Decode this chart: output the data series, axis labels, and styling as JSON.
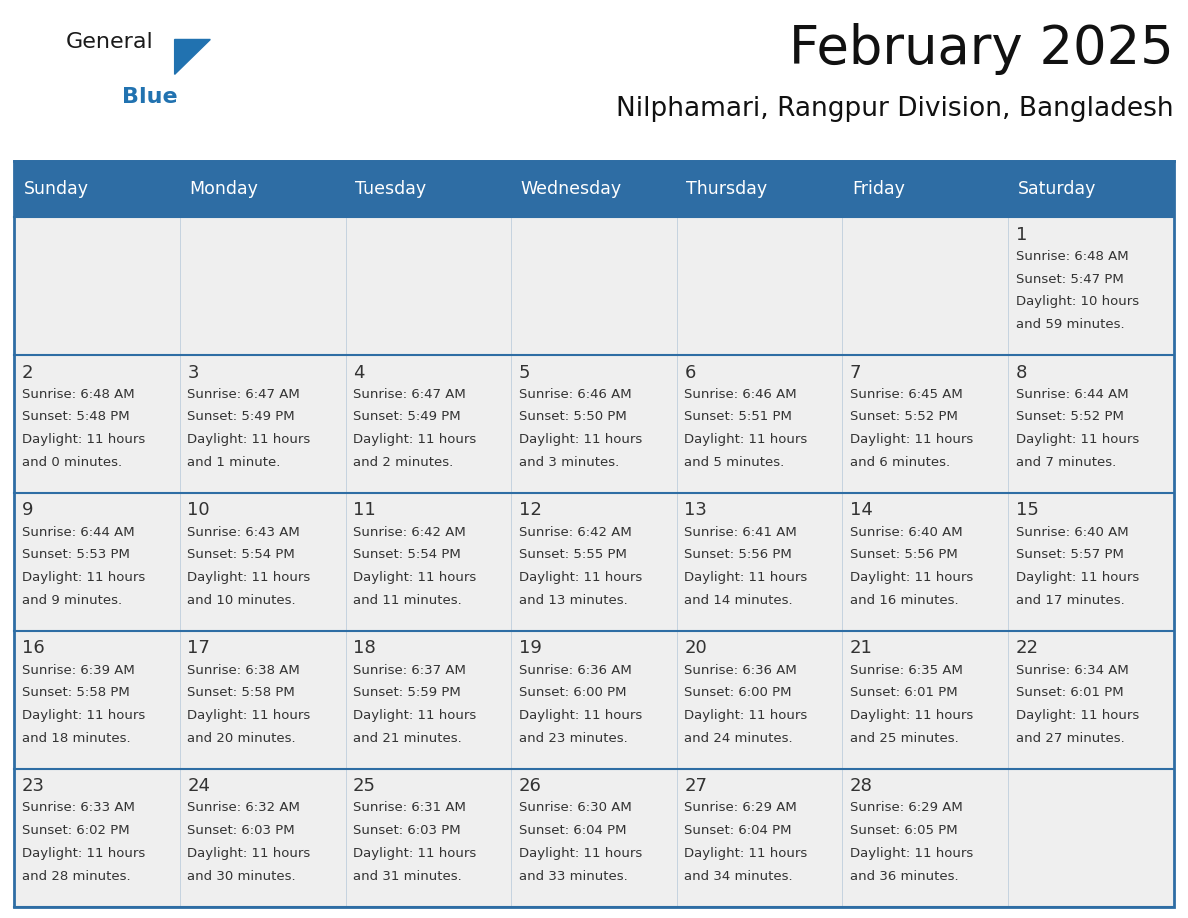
{
  "title": "February 2025",
  "subtitle": "Nilphamari, Rangpur Division, Bangladesh",
  "header_bg": "#2E6DA4",
  "header_text_color": "#FFFFFF",
  "cell_bg": "#EFEFEF",
  "grid_line_color": "#2E6DA4",
  "day_headers": [
    "Sunday",
    "Monday",
    "Tuesday",
    "Wednesday",
    "Thursday",
    "Friday",
    "Saturday"
  ],
  "days": [
    {
      "date": 1,
      "col": 6,
      "row": 0,
      "sunrise": "6:48 AM",
      "sunset": "5:47 PM",
      "daylight_line1": "Daylight: 10 hours",
      "daylight_line2": "and 59 minutes."
    },
    {
      "date": 2,
      "col": 0,
      "row": 1,
      "sunrise": "6:48 AM",
      "sunset": "5:48 PM",
      "daylight_line1": "Daylight: 11 hours",
      "daylight_line2": "and 0 minutes."
    },
    {
      "date": 3,
      "col": 1,
      "row": 1,
      "sunrise": "6:47 AM",
      "sunset": "5:49 PM",
      "daylight_line1": "Daylight: 11 hours",
      "daylight_line2": "and 1 minute."
    },
    {
      "date": 4,
      "col": 2,
      "row": 1,
      "sunrise": "6:47 AM",
      "sunset": "5:49 PM",
      "daylight_line1": "Daylight: 11 hours",
      "daylight_line2": "and 2 minutes."
    },
    {
      "date": 5,
      "col": 3,
      "row": 1,
      "sunrise": "6:46 AM",
      "sunset": "5:50 PM",
      "daylight_line1": "Daylight: 11 hours",
      "daylight_line2": "and 3 minutes."
    },
    {
      "date": 6,
      "col": 4,
      "row": 1,
      "sunrise": "6:46 AM",
      "sunset": "5:51 PM",
      "daylight_line1": "Daylight: 11 hours",
      "daylight_line2": "and 5 minutes."
    },
    {
      "date": 7,
      "col": 5,
      "row": 1,
      "sunrise": "6:45 AM",
      "sunset": "5:52 PM",
      "daylight_line1": "Daylight: 11 hours",
      "daylight_line2": "and 6 minutes."
    },
    {
      "date": 8,
      "col": 6,
      "row": 1,
      "sunrise": "6:44 AM",
      "sunset": "5:52 PM",
      "daylight_line1": "Daylight: 11 hours",
      "daylight_line2": "and 7 minutes."
    },
    {
      "date": 9,
      "col": 0,
      "row": 2,
      "sunrise": "6:44 AM",
      "sunset": "5:53 PM",
      "daylight_line1": "Daylight: 11 hours",
      "daylight_line2": "and 9 minutes."
    },
    {
      "date": 10,
      "col": 1,
      "row": 2,
      "sunrise": "6:43 AM",
      "sunset": "5:54 PM",
      "daylight_line1": "Daylight: 11 hours",
      "daylight_line2": "and 10 minutes."
    },
    {
      "date": 11,
      "col": 2,
      "row": 2,
      "sunrise": "6:42 AM",
      "sunset": "5:54 PM",
      "daylight_line1": "Daylight: 11 hours",
      "daylight_line2": "and 11 minutes."
    },
    {
      "date": 12,
      "col": 3,
      "row": 2,
      "sunrise": "6:42 AM",
      "sunset": "5:55 PM",
      "daylight_line1": "Daylight: 11 hours",
      "daylight_line2": "and 13 minutes."
    },
    {
      "date": 13,
      "col": 4,
      "row": 2,
      "sunrise": "6:41 AM",
      "sunset": "5:56 PM",
      "daylight_line1": "Daylight: 11 hours",
      "daylight_line2": "and 14 minutes."
    },
    {
      "date": 14,
      "col": 5,
      "row": 2,
      "sunrise": "6:40 AM",
      "sunset": "5:56 PM",
      "daylight_line1": "Daylight: 11 hours",
      "daylight_line2": "and 16 minutes."
    },
    {
      "date": 15,
      "col": 6,
      "row": 2,
      "sunrise": "6:40 AM",
      "sunset": "5:57 PM",
      "daylight_line1": "Daylight: 11 hours",
      "daylight_line2": "and 17 minutes."
    },
    {
      "date": 16,
      "col": 0,
      "row": 3,
      "sunrise": "6:39 AM",
      "sunset": "5:58 PM",
      "daylight_line1": "Daylight: 11 hours",
      "daylight_line2": "and 18 minutes."
    },
    {
      "date": 17,
      "col": 1,
      "row": 3,
      "sunrise": "6:38 AM",
      "sunset": "5:58 PM",
      "daylight_line1": "Daylight: 11 hours",
      "daylight_line2": "and 20 minutes."
    },
    {
      "date": 18,
      "col": 2,
      "row": 3,
      "sunrise": "6:37 AM",
      "sunset": "5:59 PM",
      "daylight_line1": "Daylight: 11 hours",
      "daylight_line2": "and 21 minutes."
    },
    {
      "date": 19,
      "col": 3,
      "row": 3,
      "sunrise": "6:36 AM",
      "sunset": "6:00 PM",
      "daylight_line1": "Daylight: 11 hours",
      "daylight_line2": "and 23 minutes."
    },
    {
      "date": 20,
      "col": 4,
      "row": 3,
      "sunrise": "6:36 AM",
      "sunset": "6:00 PM",
      "daylight_line1": "Daylight: 11 hours",
      "daylight_line2": "and 24 minutes."
    },
    {
      "date": 21,
      "col": 5,
      "row": 3,
      "sunrise": "6:35 AM",
      "sunset": "6:01 PM",
      "daylight_line1": "Daylight: 11 hours",
      "daylight_line2": "and 25 minutes."
    },
    {
      "date": 22,
      "col": 6,
      "row": 3,
      "sunrise": "6:34 AM",
      "sunset": "6:01 PM",
      "daylight_line1": "Daylight: 11 hours",
      "daylight_line2": "and 27 minutes."
    },
    {
      "date": 23,
      "col": 0,
      "row": 4,
      "sunrise": "6:33 AM",
      "sunset": "6:02 PM",
      "daylight_line1": "Daylight: 11 hours",
      "daylight_line2": "and 28 minutes."
    },
    {
      "date": 24,
      "col": 1,
      "row": 4,
      "sunrise": "6:32 AM",
      "sunset": "6:03 PM",
      "daylight_line1": "Daylight: 11 hours",
      "daylight_line2": "and 30 minutes."
    },
    {
      "date": 25,
      "col": 2,
      "row": 4,
      "sunrise": "6:31 AM",
      "sunset": "6:03 PM",
      "daylight_line1": "Daylight: 11 hours",
      "daylight_line2": "and 31 minutes."
    },
    {
      "date": 26,
      "col": 3,
      "row": 4,
      "sunrise": "6:30 AM",
      "sunset": "6:04 PM",
      "daylight_line1": "Daylight: 11 hours",
      "daylight_line2": "and 33 minutes."
    },
    {
      "date": 27,
      "col": 4,
      "row": 4,
      "sunrise": "6:29 AM",
      "sunset": "6:04 PM",
      "daylight_line1": "Daylight: 11 hours",
      "daylight_line2": "and 34 minutes."
    },
    {
      "date": 28,
      "col": 5,
      "row": 4,
      "sunrise": "6:29 AM",
      "sunset": "6:05 PM",
      "daylight_line1": "Daylight: 11 hours",
      "daylight_line2": "and 36 minutes."
    }
  ],
  "num_rows": 5,
  "num_cols": 7,
  "title_fontsize": 38,
  "subtitle_fontsize": 19,
  "header_fontsize": 12.5,
  "date_fontsize": 13,
  "cell_fontsize": 9.5,
  "text_color": "#333333",
  "logo_general_color": "#1a1a1a",
  "logo_blue_color": "#2172B0",
  "logo_triangle_color": "#2172B0"
}
